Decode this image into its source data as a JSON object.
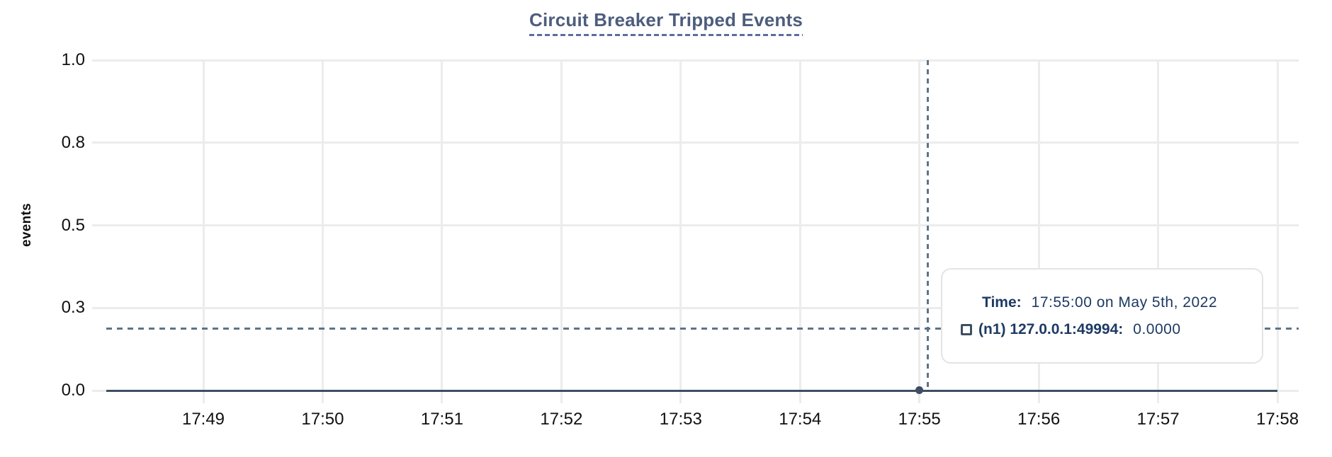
{
  "chart": {
    "title": "Circuit Breaker Tripped Events",
    "y_axis_label": "events"
  },
  "tooltip": {
    "time_label": "Time:",
    "time_value": "17:55:00 on May 5th, 2022",
    "series_label": "(n1) 127.0.0.1:49994:",
    "series_value": "0.0000",
    "marker_icon": "square-outline-icon"
  },
  "colors": {
    "series": "#3e4e63",
    "crosshair": "#5e7387",
    "grid": "#ececec",
    "title": "#4d5d7d",
    "title_underline": "#5c6c9c",
    "tooltip_text": "#1d3a63",
    "tooltip_border": "#e4e4e4",
    "axis_text": "#111111"
  },
  "chart_data": {
    "type": "line",
    "title": "Circuit Breaker Tripped Events",
    "xlabel": "",
    "ylabel": "events",
    "ylim": [
      0,
      1
    ],
    "grid": true,
    "legend_position": "tooltip",
    "y_tick_values": [
      1.0,
      0.75,
      0.5,
      0.25,
      0.0
    ],
    "y_tick_labels": [
      "1.0",
      "0.8",
      "0.5",
      "0.3",
      "0.0"
    ],
    "x_tick_labels": [
      "17:49",
      "17:50",
      "17:51",
      "17:52",
      "17:53",
      "17:54",
      "17:55",
      "17:56",
      "17:57",
      "17:58"
    ],
    "series": [
      {
        "name": "(n1) 127.0.0.1:49994",
        "color": "#3e4e63",
        "x": [
          "17:49",
          "17:50",
          "17:51",
          "17:52",
          "17:53",
          "17:54",
          "17:55",
          "17:56",
          "17:57",
          "17:58"
        ],
        "values": [
          0,
          0,
          0,
          0,
          0,
          0,
          0,
          0,
          0,
          0
        ]
      }
    ],
    "hovered_point": {
      "series": "(n1) 127.0.0.1:49994",
      "x": "17:55:00",
      "y": 0.0
    }
  }
}
